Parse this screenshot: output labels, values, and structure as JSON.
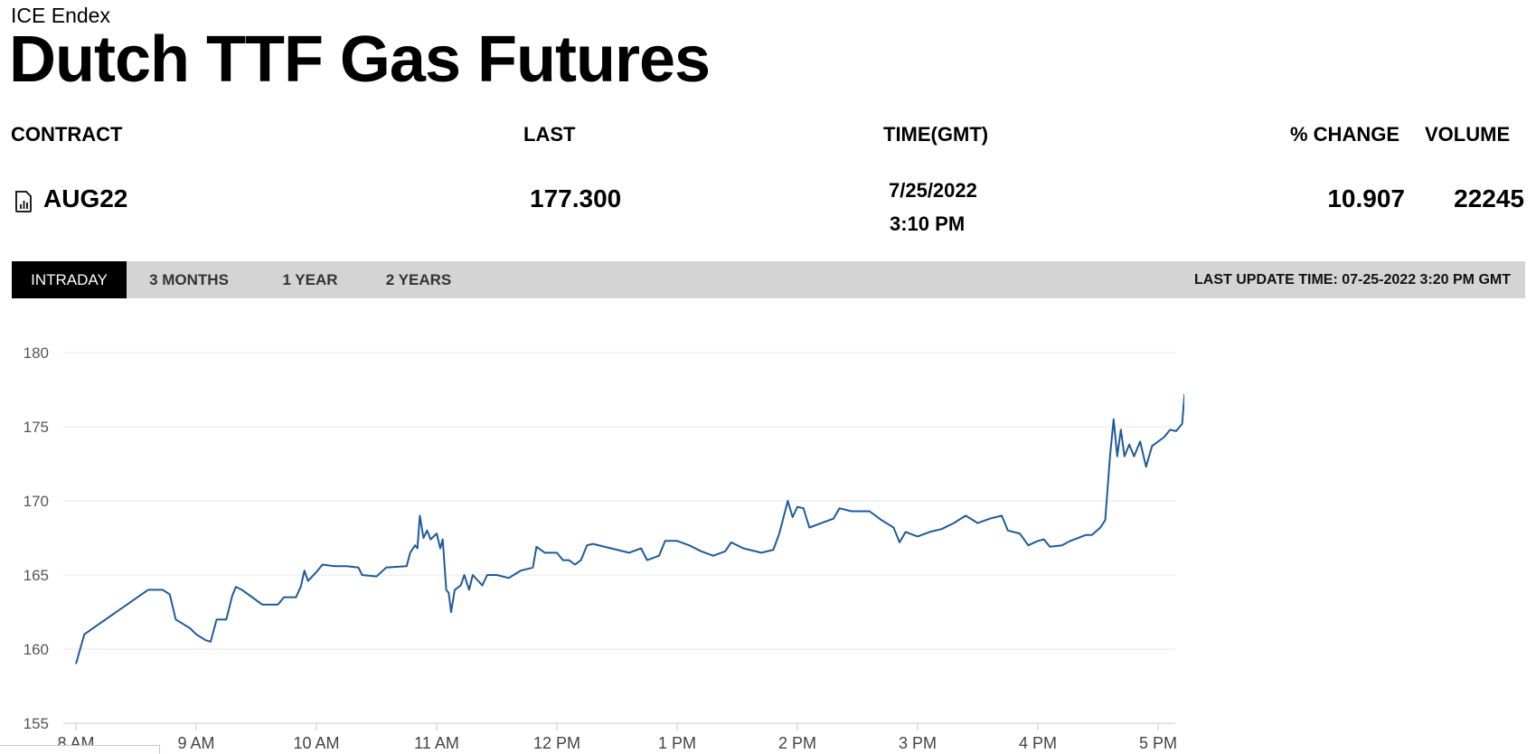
{
  "header": {
    "exchange": "ICE Endex",
    "title": "Dutch TTF Gas Futures"
  },
  "table": {
    "columns": {
      "contract": "CONTRACT",
      "last": "LAST",
      "time": "TIME(GMT)",
      "pct_change": "% CHANGE",
      "volume": "VOLUME"
    },
    "row": {
      "contract": "AUG22",
      "last": "177.300",
      "date": "7/25/2022",
      "time": "3:10 PM",
      "pct_change": "10.907",
      "volume": "22245",
      "icon": "document-chart-icon"
    }
  },
  "tabs": [
    {
      "label": "INTRADAY",
      "active": true
    },
    {
      "label": "3 MONTHS",
      "active": false
    },
    {
      "label": "1 YEAR",
      "active": false
    },
    {
      "label": "2 YEARS",
      "active": false
    }
  ],
  "last_update": "LAST UPDATE TIME: 07-25-2022 3:20 PM GMT",
  "colors": {
    "line": "#1f5a9a",
    "tab_active_bg": "#000000",
    "tabbar_bg": "#d4d4d4",
    "grid": "#e5e5e5"
  },
  "chart_data": {
    "type": "line",
    "title": "",
    "xlabel": "",
    "ylabel": "",
    "ylim": [
      155,
      180
    ],
    "xlim": [
      8.0,
      17.25
    ],
    "yticks": [
      155,
      160,
      165,
      170,
      175,
      180
    ],
    "xtick_labels": [
      {
        "x": 8,
        "label": "8 AM"
      },
      {
        "x": 9,
        "label": "9 AM"
      },
      {
        "x": 10,
        "label": "10 AM"
      },
      {
        "x": 11,
        "label": "11 AM"
      },
      {
        "x": 12,
        "label": "12 PM"
      },
      {
        "x": 13,
        "label": "1 PM"
      },
      {
        "x": 14,
        "label": "2 PM"
      },
      {
        "x": 15,
        "label": "3 PM"
      },
      {
        "x": 16,
        "label": "4 PM"
      },
      {
        "x": 17,
        "label": "5 PM"
      }
    ],
    "grid": true,
    "series": [
      {
        "name": "",
        "points": [
          [
            8.0,
            159.0
          ],
          [
            8.07,
            161.0
          ],
          [
            8.6,
            164.0
          ],
          [
            8.72,
            164.0
          ],
          [
            8.78,
            163.7
          ],
          [
            8.83,
            162.0
          ],
          [
            8.95,
            161.4
          ],
          [
            9.0,
            161.0
          ],
          [
            9.08,
            160.6
          ],
          [
            9.12,
            160.5
          ],
          [
            9.17,
            162.0
          ],
          [
            9.25,
            162.0
          ],
          [
            9.3,
            163.6
          ],
          [
            9.33,
            164.2
          ],
          [
            9.38,
            164.0
          ],
          [
            9.45,
            163.6
          ],
          [
            9.55,
            163.0
          ],
          [
            9.68,
            163.0
          ],
          [
            9.73,
            163.5
          ],
          [
            9.83,
            163.5
          ],
          [
            9.87,
            164.2
          ],
          [
            9.9,
            165.3
          ],
          [
            9.93,
            164.6
          ],
          [
            10.0,
            165.2
          ],
          [
            10.05,
            165.7
          ],
          [
            10.15,
            165.6
          ],
          [
            10.25,
            165.6
          ],
          [
            10.35,
            165.5
          ],
          [
            10.38,
            165.0
          ],
          [
            10.5,
            164.9
          ],
          [
            10.58,
            165.5
          ],
          [
            10.75,
            165.6
          ],
          [
            10.78,
            166.5
          ],
          [
            10.82,
            167.0
          ],
          [
            10.84,
            166.8
          ],
          [
            10.86,
            169.0
          ],
          [
            10.89,
            167.5
          ],
          [
            10.92,
            168.0
          ],
          [
            10.95,
            167.4
          ],
          [
            11.0,
            167.8
          ],
          [
            11.03,
            166.8
          ],
          [
            11.05,
            167.4
          ],
          [
            11.08,
            164.0
          ],
          [
            11.1,
            163.8
          ],
          [
            11.12,
            162.5
          ],
          [
            11.15,
            164.0
          ],
          [
            11.2,
            164.3
          ],
          [
            11.23,
            165.0
          ],
          [
            11.27,
            164.0
          ],
          [
            11.3,
            165.0
          ],
          [
            11.38,
            164.3
          ],
          [
            11.42,
            165.0
          ],
          [
            11.5,
            165.0
          ],
          [
            11.6,
            164.8
          ],
          [
            11.7,
            165.3
          ],
          [
            11.8,
            165.5
          ],
          [
            11.83,
            166.9
          ],
          [
            11.9,
            166.5
          ],
          [
            12.0,
            166.5
          ],
          [
            12.05,
            166.0
          ],
          [
            12.1,
            166.0
          ],
          [
            12.15,
            165.7
          ],
          [
            12.2,
            166.0
          ],
          [
            12.25,
            167.0
          ],
          [
            12.3,
            167.1
          ],
          [
            12.45,
            166.8
          ],
          [
            12.6,
            166.5
          ],
          [
            12.7,
            166.8
          ],
          [
            12.75,
            166.0
          ],
          [
            12.85,
            166.3
          ],
          [
            12.9,
            167.3
          ],
          [
            13.0,
            167.3
          ],
          [
            13.1,
            167.0
          ],
          [
            13.2,
            166.6
          ],
          [
            13.3,
            166.3
          ],
          [
            13.4,
            166.6
          ],
          [
            13.45,
            167.2
          ],
          [
            13.55,
            166.8
          ],
          [
            13.7,
            166.5
          ],
          [
            13.8,
            166.7
          ],
          [
            13.85,
            167.8
          ],
          [
            13.92,
            170.0
          ],
          [
            13.96,
            168.9
          ],
          [
            14.0,
            169.6
          ],
          [
            14.05,
            169.5
          ],
          [
            14.1,
            168.2
          ],
          [
            14.2,
            168.5
          ],
          [
            14.3,
            168.8
          ],
          [
            14.35,
            169.5
          ],
          [
            14.45,
            169.3
          ],
          [
            14.6,
            169.3
          ],
          [
            14.7,
            168.7
          ],
          [
            14.8,
            168.2
          ],
          [
            14.85,
            167.2
          ],
          [
            14.9,
            167.9
          ],
          [
            15.0,
            167.6
          ],
          [
            15.1,
            167.9
          ],
          [
            15.2,
            168.1
          ],
          [
            15.3,
            168.5
          ],
          [
            15.4,
            169.0
          ],
          [
            15.5,
            168.5
          ],
          [
            15.6,
            168.8
          ],
          [
            15.7,
            169.0
          ],
          [
            15.75,
            168.0
          ],
          [
            15.85,
            167.8
          ],
          [
            15.92,
            167.0
          ],
          [
            16.0,
            167.3
          ],
          [
            16.05,
            167.4
          ],
          [
            16.1,
            166.9
          ],
          [
            16.2,
            167.0
          ],
          [
            16.27,
            167.3
          ],
          [
            16.4,
            167.7
          ],
          [
            16.45,
            167.7
          ],
          [
            16.52,
            168.2
          ],
          [
            16.56,
            168.7
          ],
          [
            16.6,
            173.0
          ],
          [
            16.63,
            175.5
          ],
          [
            16.66,
            173.0
          ],
          [
            16.69,
            174.8
          ],
          [
            16.72,
            173.0
          ],
          [
            16.76,
            173.8
          ],
          [
            16.8,
            173.0
          ],
          [
            16.85,
            174.0
          ],
          [
            16.9,
            172.3
          ],
          [
            16.95,
            173.7
          ],
          [
            17.0,
            174.0
          ],
          [
            17.05,
            174.3
          ],
          [
            17.1,
            174.8
          ],
          [
            17.15,
            174.7
          ],
          [
            17.2,
            175.2
          ],
          [
            17.22,
            177.2
          ],
          [
            17.24,
            177.0
          ],
          [
            17.25,
            177.5
          ]
        ]
      }
    ]
  }
}
